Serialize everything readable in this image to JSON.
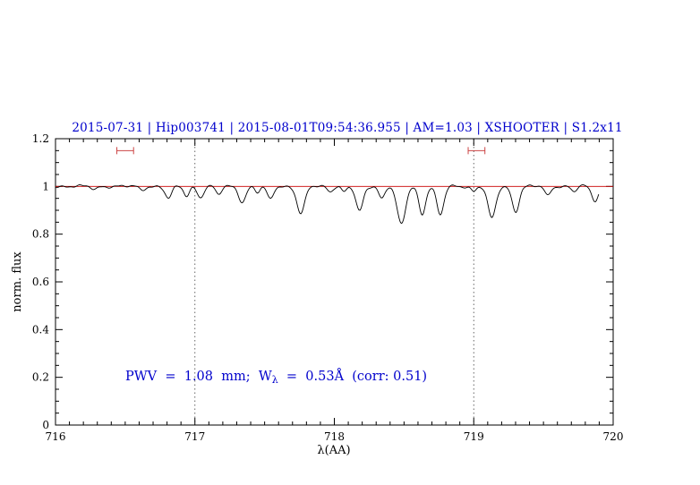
{
  "title": {
    "text": "2015-07-31 | Hip003741 | 2015-08-01T09:54:36.955 | AM=1.03 | XSHOOTER | S1.2x11",
    "color": "#0000cc"
  },
  "annotation": {
    "part1": "PWV  =  1.08  mm;  W",
    "sub": "λ",
    "part2": "  =  0.53Å  (corr: 0.51)",
    "color": "#0000cc"
  },
  "chart_data": {
    "type": "line",
    "title": "2015-07-31 | Hip003741 | 2015-08-01T09:54:36.955 | AM=1.03 | XSHOOTER | S1.2x11",
    "xlabel": "λ(AA)",
    "ylabel": "norm. flux",
    "xlim": [
      716,
      720
    ],
    "ylim": [
      0,
      1.2
    ],
    "grid": false,
    "x_major_ticks": [
      716,
      717,
      718,
      719,
      720
    ],
    "x_tick_labels": [
      "716",
      "717",
      "718",
      "719",
      "720"
    ],
    "x_minor_step": 0.1,
    "y_major_ticks": [
      0,
      0.2,
      0.4,
      0.6,
      0.8,
      1.0,
      1.2
    ],
    "y_tick_labels": [
      "0",
      "0.2",
      "0.4",
      "0.6",
      "0.8",
      "1",
      "1.2"
    ],
    "y_minor_step": 0.05,
    "continuum_line": {
      "y": 1.0,
      "color": "#cc0000"
    },
    "region_boundary_lines": {
      "x": [
        717,
        719
      ],
      "color": "#555555",
      "style": "dotted"
    },
    "telluric_region_markers": {
      "y": 1.15,
      "color": "#cc4444",
      "ranges": [
        [
          716.44,
          716.56
        ],
        [
          718.96,
          719.08
        ]
      ]
    },
    "series": [
      {
        "name": "normalized-spectrum",
        "color": "#000000",
        "continuum_level": 1.0,
        "x_start": 716.0,
        "x_end": 719.9,
        "absorption_lines": [
          {
            "center": 716.28,
            "depth": 0.012,
            "sigma": 0.02
          },
          {
            "center": 716.62,
            "depth": 0.015,
            "sigma": 0.02
          },
          {
            "center": 716.81,
            "depth": 0.05,
            "sigma": 0.024
          },
          {
            "center": 716.94,
            "depth": 0.04,
            "sigma": 0.02
          },
          {
            "center": 717.04,
            "depth": 0.045,
            "sigma": 0.022
          },
          {
            "center": 717.17,
            "depth": 0.035,
            "sigma": 0.02
          },
          {
            "center": 717.34,
            "depth": 0.065,
            "sigma": 0.025
          },
          {
            "center": 717.45,
            "depth": 0.025,
            "sigma": 0.018
          },
          {
            "center": 717.54,
            "depth": 0.055,
            "sigma": 0.022
          },
          {
            "center": 717.76,
            "depth": 0.115,
            "sigma": 0.028
          },
          {
            "center": 717.97,
            "depth": 0.02,
            "sigma": 0.018
          },
          {
            "center": 718.07,
            "depth": 0.022,
            "sigma": 0.018
          },
          {
            "center": 718.18,
            "depth": 0.105,
            "sigma": 0.026
          },
          {
            "center": 718.34,
            "depth": 0.05,
            "sigma": 0.02
          },
          {
            "center": 718.48,
            "depth": 0.16,
            "sigma": 0.03
          },
          {
            "center": 718.63,
            "depth": 0.115,
            "sigma": 0.024
          },
          {
            "center": 718.76,
            "depth": 0.12,
            "sigma": 0.025
          },
          {
            "center": 719.0,
            "depth": 0.02,
            "sigma": 0.018
          },
          {
            "center": 719.13,
            "depth": 0.135,
            "sigma": 0.028
          },
          {
            "center": 719.3,
            "depth": 0.105,
            "sigma": 0.025
          },
          {
            "center": 719.53,
            "depth": 0.04,
            "sigma": 0.02
          },
          {
            "center": 719.72,
            "depth": 0.022,
            "sigma": 0.018
          },
          {
            "center": 719.87,
            "depth": 0.06,
            "sigma": 0.024
          }
        ]
      }
    ],
    "measurements": {
      "pwv_mm": 1.08,
      "equivalent_width_A": 0.53,
      "correction": 0.51,
      "airmass": 1.03
    }
  }
}
